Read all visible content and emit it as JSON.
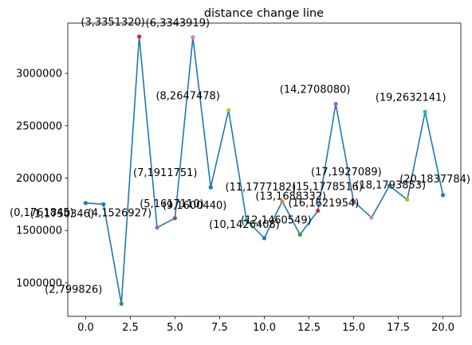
{
  "chart_data": {
    "type": "line",
    "title": "distance change line",
    "xlabel": "",
    "ylabel": "",
    "xlim": [
      -1,
      21
    ],
    "ylim": [
      680000,
      3480000
    ],
    "x_ticks": [
      0.0,
      2.5,
      5.0,
      7.5,
      10.0,
      12.5,
      15.0,
      17.5,
      20.0
    ],
    "x_tick_labels": [
      "0.0",
      "2.5",
      "5.0",
      "7.5",
      "10.0",
      "12.5",
      "15.0",
      "17.5",
      "20.0"
    ],
    "y_ticks": [
      1000000,
      1500000,
      2000000,
      2500000,
      3000000
    ],
    "y_tick_labels": [
      "1000000",
      "1500000",
      "2000000",
      "2500000",
      "3000000"
    ],
    "grid": false,
    "line_color": "#1f77b4",
    "series": [
      {
        "x": [
          0,
          1,
          2,
          3,
          4,
          5,
          6,
          7,
          8,
          9,
          10,
          11,
          12,
          13,
          14,
          15,
          16,
          17,
          18,
          19,
          20
        ],
        "values": [
          1761845,
          1750346,
          799826,
          3351320,
          1526927,
          1617110,
          3343919,
          1911751,
          2647478,
          1600440,
          1426408,
          1777182,
          1460549,
          1688332,
          2708080,
          1778516,
          1621954,
          1927089,
          1793853,
          2632141,
          1837784
        ]
      }
    ],
    "point_colors": [
      "#1f77b4",
      "#1f77b4",
      "#2ca02c",
      "#d62728",
      "#9467bd",
      "#8c564b",
      "#e377c2",
      "#1f77b4",
      "#bcbd22",
      "#17becf",
      "#1f77b4",
      "#ff7f0e",
      "#2ca02c",
      "#d62728",
      "#9467bd",
      "#8c564b",
      "#e377c2",
      "#1f77b4",
      "#bcbd22",
      "#17becf",
      "#1f77b4"
    ],
    "annotations": [
      "(0,1761845)",
      "(1,1750346)",
      "(2,799826)",
      "(3,3351320)",
      "(4,1526927)",
      "(5,1617110)",
      "(6,3343919)",
      "(7,1911751)",
      "(8,2647478)",
      "(9,1600440)",
      "(10,1426408)",
      "(11,1777182)",
      "(12,1460549)",
      "(13,1688332)",
      "(14,2708080)",
      "(15,1778516)",
      "(16,1621954)",
      "(17,1927089)",
      "(18,1793853)",
      "(19,2632141)",
      "(20,1837784)"
    ]
  }
}
